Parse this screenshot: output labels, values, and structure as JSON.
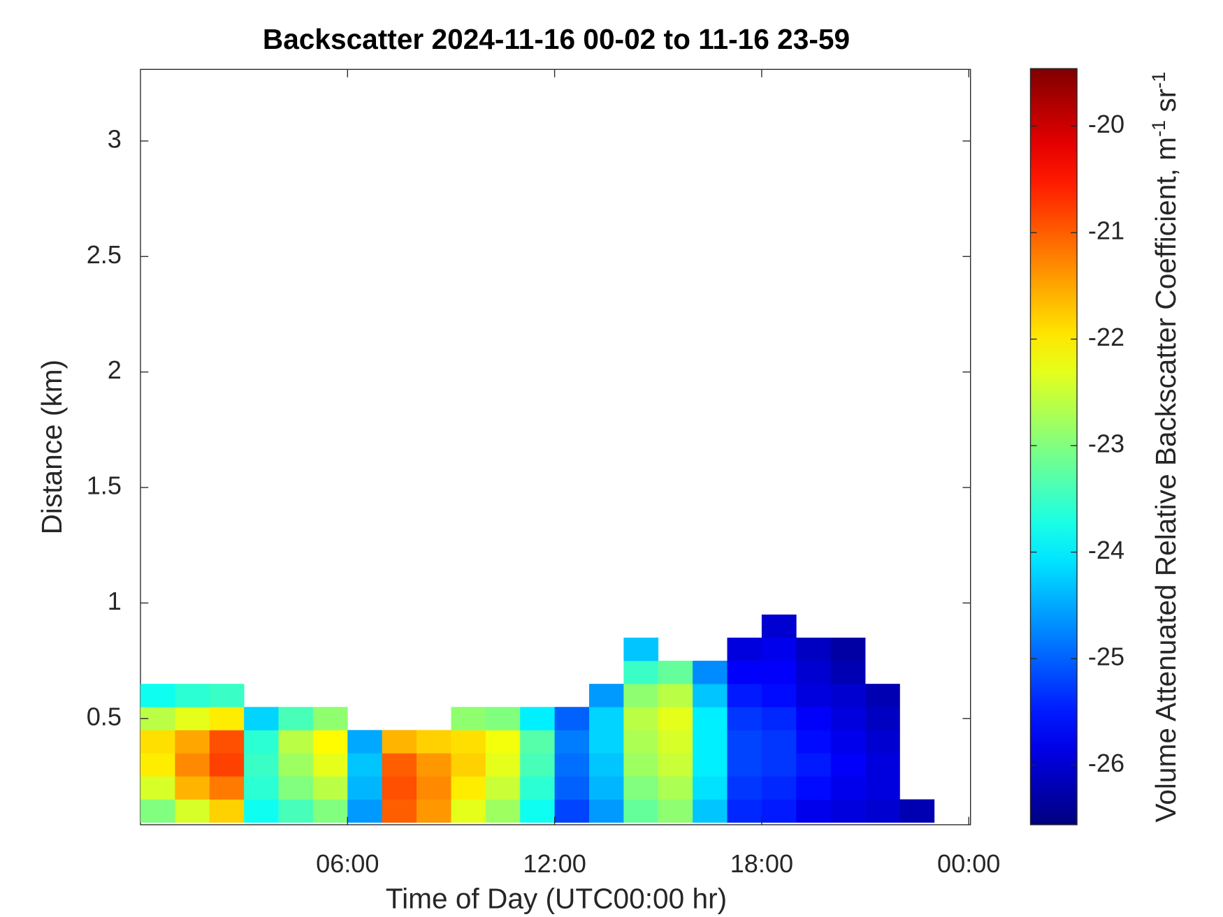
{
  "chart_data": {
    "type": "heatmap",
    "title": "Backscatter 2024-11-16 00-02 to 11-16 23-59",
    "x_label": "Time of Day (UTC00:00 hr)",
    "y_label": "Distance (km)",
    "colorbar_label": [
      "Volume Attenuated Relative Backscatter Coefficient, m",
      "-1",
      " sr",
      "-1"
    ],
    "colormap": "jet",
    "xlim": [
      0,
      24.05
    ],
    "xticks": [
      {
        "value": 6,
        "label": "06:00"
      },
      {
        "value": 12,
        "label": "12:00"
      },
      {
        "value": 18,
        "label": "18:00"
      },
      {
        "value": 24,
        "label": "00:00"
      }
    ],
    "ylim": [
      0.04,
      3.31
    ],
    "yticks": [
      0.5,
      1,
      1.5,
      2,
      2.5,
      3
    ],
    "clim": [
      -26.56,
      -19.46
    ],
    "cticks": [
      -26,
      -25,
      -24,
      -23,
      -22,
      -21,
      -20
    ],
    "x": [
      0.5,
      1.5,
      2.5,
      3.5,
      4.5,
      5.5,
      6.5,
      7.5,
      8.5,
      9.5,
      10.5,
      11.5,
      12.5,
      13.5,
      14.5,
      15.5,
      16.5,
      17.5,
      18.5,
      19.5,
      20.5,
      21.5,
      22.5,
      23.5
    ],
    "y": [
      0.1,
      0.2,
      0.3,
      0.4,
      0.5,
      0.6,
      0.7,
      0.8,
      0.9
    ],
    "z": [
      [
        -23.0,
        -22.4,
        -21.8,
        -23.8,
        -23.4,
        -23.0,
        -24.6,
        -21.0,
        -21.4,
        -22.3,
        -22.8,
        -23.8,
        -25.2,
        -24.6,
        -23.2,
        -22.9,
        -24.3,
        -25.4,
        -25.5,
        -25.8,
        -25.9,
        -26.0,
        -26.2,
        null
      ],
      [
        -22.4,
        -21.6,
        -21.2,
        -23.6,
        -23.0,
        -22.6,
        -24.4,
        -20.9,
        -21.3,
        -22.0,
        -22.5,
        -23.6,
        -25.0,
        -24.4,
        -23.0,
        -22.7,
        -24.1,
        -25.3,
        -25.4,
        -25.6,
        -25.8,
        -25.9,
        null,
        null
      ],
      [
        -22.0,
        -21.3,
        -20.8,
        -23.5,
        -22.8,
        -22.3,
        -24.3,
        -21.0,
        -21.4,
        -21.8,
        -22.3,
        -23.4,
        -24.9,
        -24.3,
        -22.8,
        -22.5,
        -24.0,
        -25.2,
        -25.3,
        -25.5,
        -25.7,
        -25.9,
        null,
        null
      ],
      [
        -21.9,
        -21.5,
        -20.9,
        -23.6,
        -22.6,
        -22.1,
        -24.5,
        -21.6,
        -21.8,
        -21.9,
        -22.2,
        -23.3,
        -24.8,
        -24.2,
        -22.7,
        -22.4,
        -24.0,
        -25.2,
        -25.3,
        -25.6,
        -25.8,
        -26.0,
        null,
        null
      ],
      [
        -22.6,
        -22.3,
        -22.0,
        -24.2,
        -23.4,
        -22.9,
        null,
        null,
        null,
        -22.9,
        -23.0,
        -24.0,
        -25.0,
        -24.2,
        -22.6,
        -22.3,
        -24.0,
        -25.3,
        -25.4,
        -25.7,
        -25.9,
        -26.1,
        null,
        null
      ],
      [
        -23.8,
        -23.6,
        -23.5,
        null,
        null,
        null,
        null,
        null,
        null,
        null,
        null,
        null,
        null,
        -24.6,
        -22.9,
        -22.6,
        -24.3,
        -25.5,
        -25.6,
        -25.9,
        -26.0,
        -26.2,
        null,
        null
      ],
      [
        null,
        null,
        null,
        null,
        null,
        null,
        null,
        null,
        null,
        null,
        null,
        null,
        null,
        null,
        -23.5,
        -23.2,
        -24.7,
        -25.7,
        -25.7,
        -26.0,
        -26.2,
        null,
        null,
        null
      ],
      [
        null,
        null,
        null,
        null,
        null,
        null,
        null,
        null,
        null,
        null,
        null,
        null,
        null,
        null,
        -24.3,
        null,
        null,
        -25.9,
        -25.8,
        -26.1,
        -26.3,
        null,
        null,
        null
      ],
      [
        null,
        null,
        null,
        null,
        null,
        null,
        null,
        null,
        null,
        null,
        null,
        null,
        null,
        null,
        null,
        null,
        null,
        null,
        -26.0,
        null,
        null,
        null,
        null,
        null
      ]
    ]
  }
}
